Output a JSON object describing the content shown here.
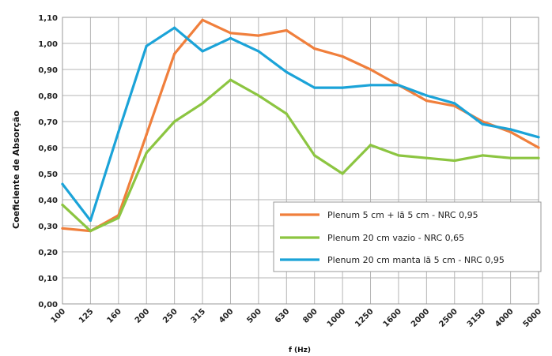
{
  "chart_data": {
    "type": "line",
    "xlabel": "f (Hz)",
    "ylabel": "Coeficiente de Absorção",
    "ylim": [
      0,
      1.1
    ],
    "yticks": [
      "0,00",
      "0,10",
      "0,20",
      "0,30",
      "0,40",
      "0,50",
      "0,60",
      "0,70",
      "0,80",
      "0,90",
      "1,00",
      "1,10"
    ],
    "grid": true,
    "legend_position": "bottom-right",
    "categories": [
      "100",
      "125",
      "160",
      "200",
      "250",
      "315",
      "400",
      "500",
      "630",
      "800",
      "1000",
      "1250",
      "1600",
      "2000",
      "2500",
      "3150",
      "4000",
      "5000"
    ],
    "series": [
      {
        "name": "Plenum 5 cm + lã 5 cm - NRC 0,95",
        "color": "#f07f3c",
        "values": [
          0.29,
          0.28,
          0.34,
          0.65,
          0.96,
          1.09,
          1.04,
          1.03,
          1.05,
          0.98,
          0.95,
          0.9,
          0.84,
          0.78,
          0.76,
          0.7,
          0.66,
          0.6
        ]
      },
      {
        "name": "Plenum 20 cm vazio - NRC 0,65",
        "color": "#8cc541",
        "values": [
          0.38,
          0.28,
          0.33,
          0.58,
          0.7,
          0.77,
          0.86,
          0.8,
          0.73,
          0.57,
          0.5,
          0.61,
          0.57,
          0.56,
          0.55,
          0.57,
          0.56,
          0.56
        ]
      },
      {
        "name": "Plenum 20 cm manta lã 5 cm - NRC 0,95",
        "color": "#1ba3d8",
        "values": [
          0.46,
          0.32,
          0.66,
          0.99,
          1.06,
          0.97,
          1.02,
          0.97,
          0.89,
          0.83,
          0.83,
          0.84,
          0.84,
          0.8,
          0.77,
          0.69,
          0.67,
          0.64
        ]
      }
    ]
  }
}
